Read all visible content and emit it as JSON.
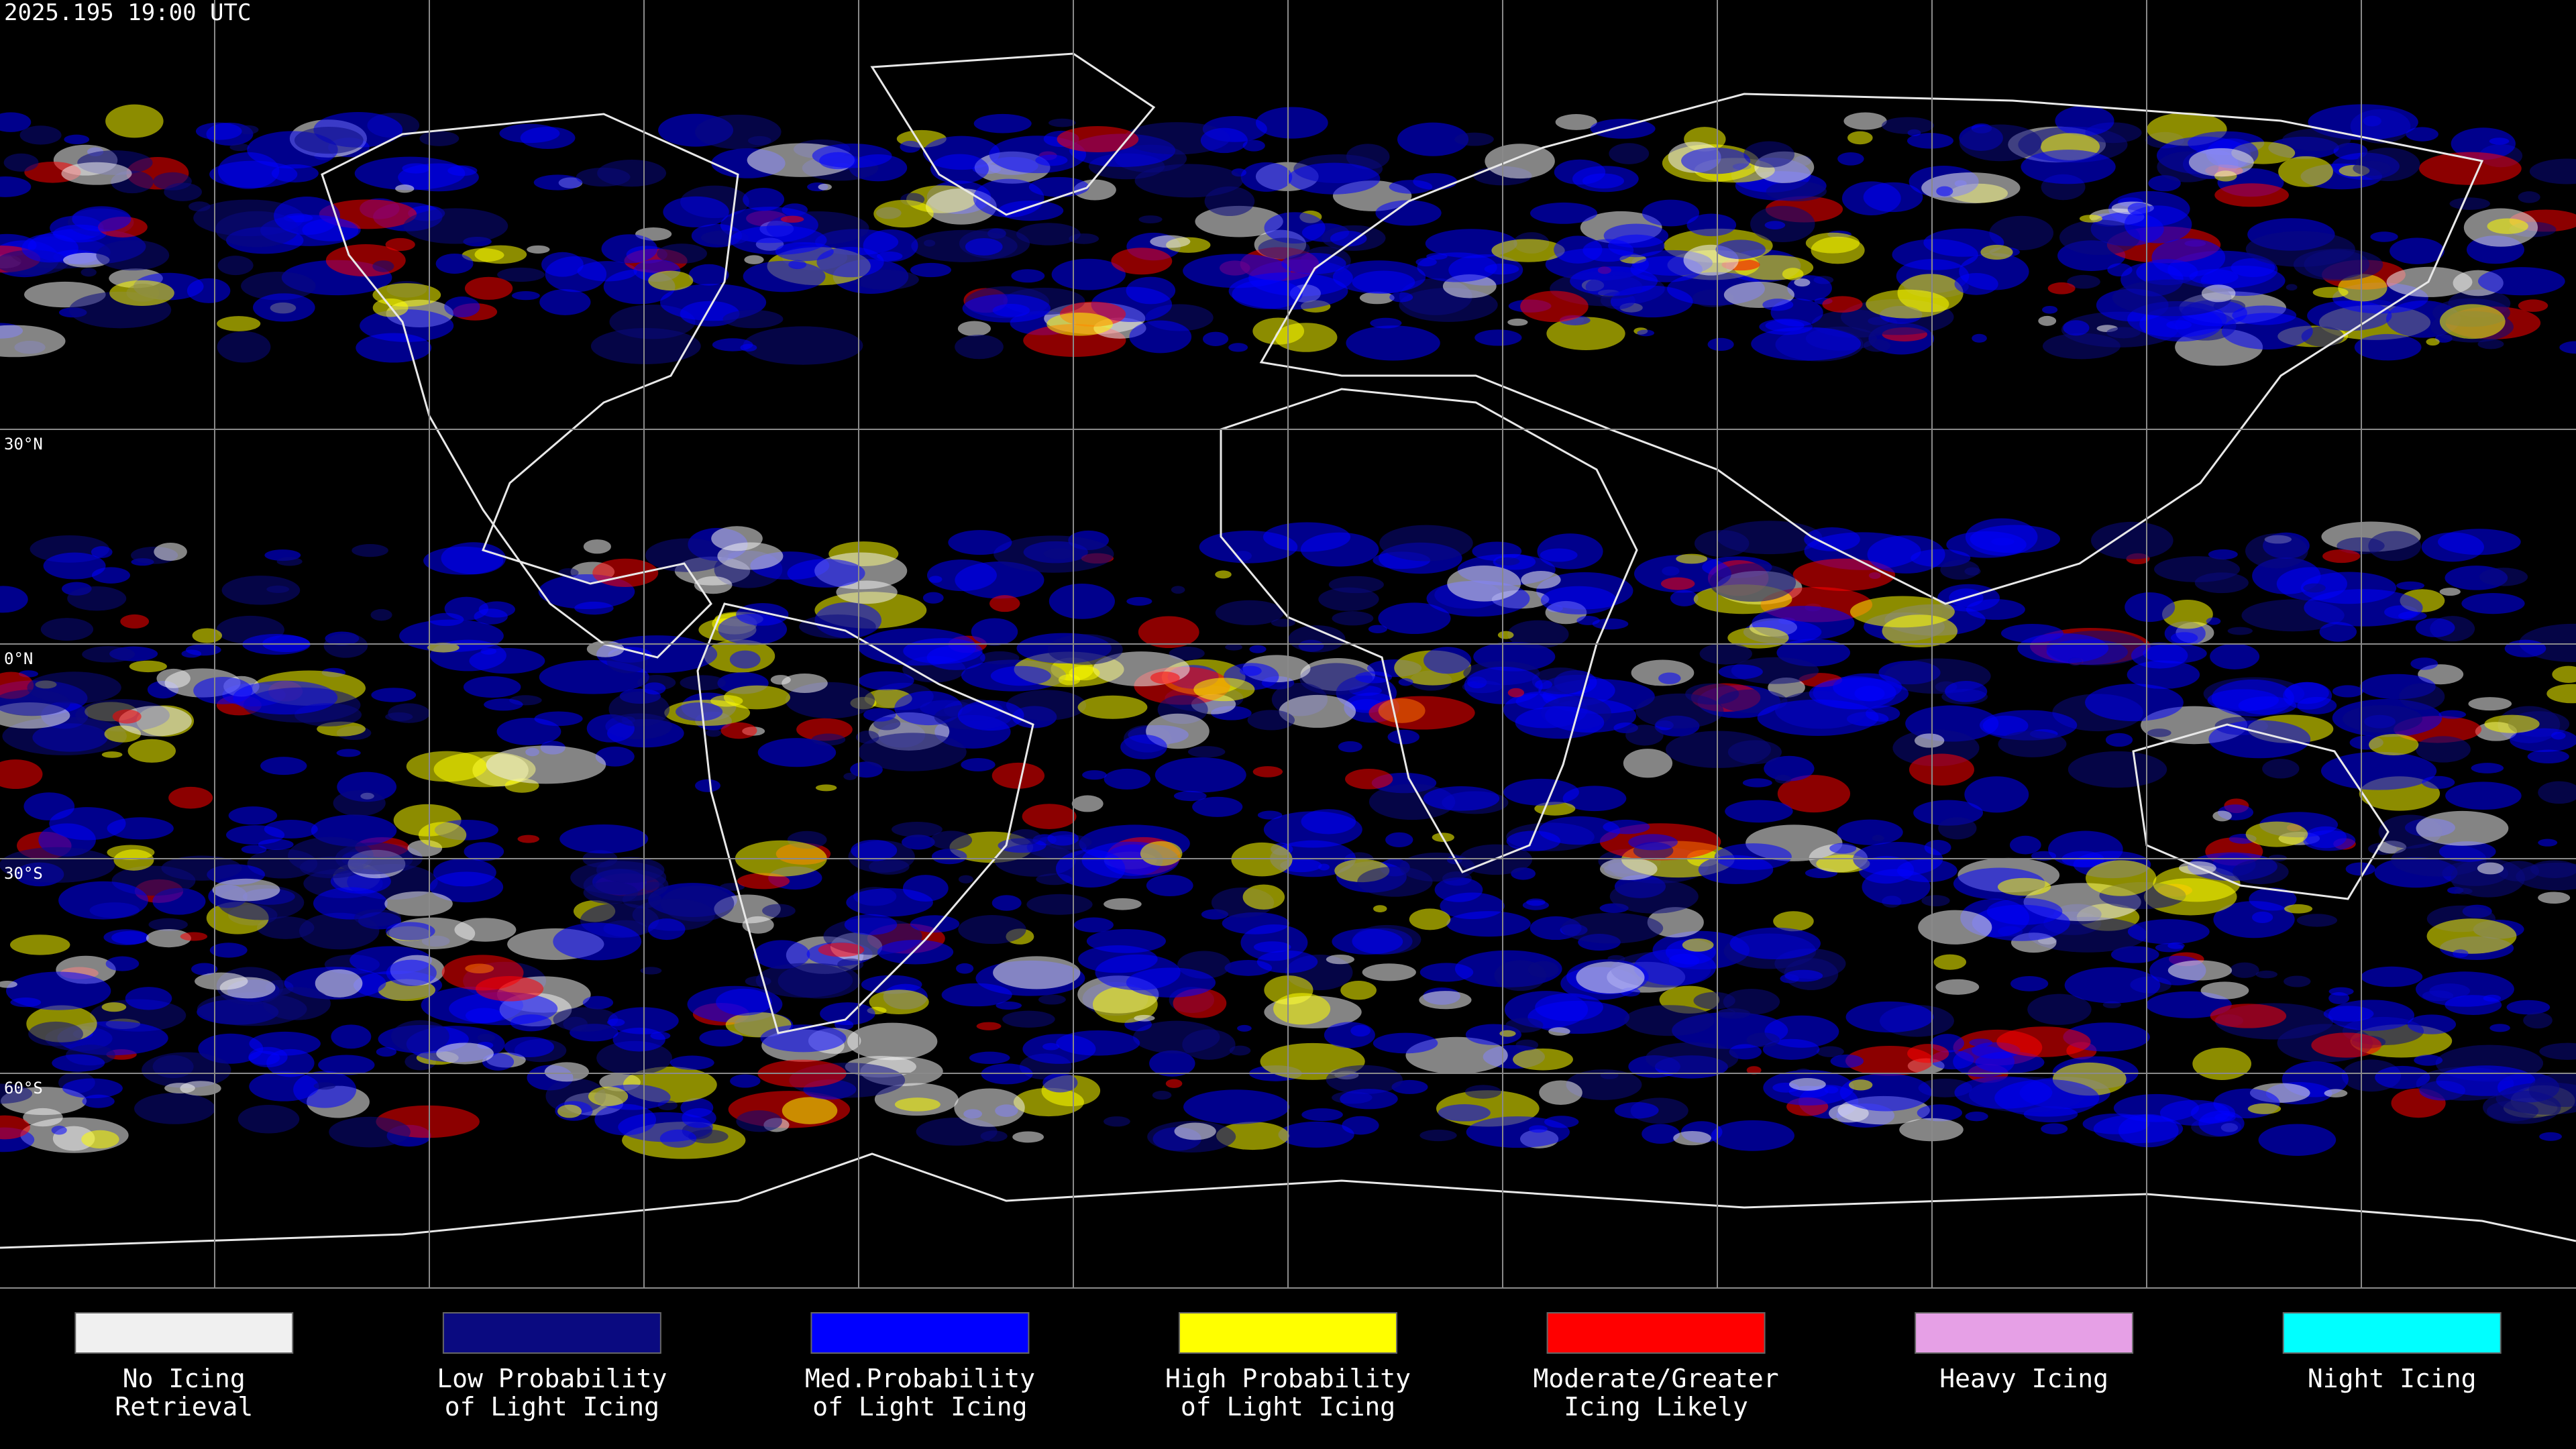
{
  "header": {
    "timestamp": "2025.195 19:00 UTC"
  },
  "latitude_labels": [
    "30°N",
    "0°N",
    "30°S",
    "60°S"
  ],
  "legend": [
    {
      "lines": [
        "No Icing",
        "Retrieval"
      ],
      "color": "#f0f0f0"
    },
    {
      "lines": [
        "Low Probability",
        "of Light Icing"
      ],
      "color": "#0a0a80"
    },
    {
      "lines": [
        "Med.Probability",
        "of Light Icing"
      ],
      "color": "#0000ff"
    },
    {
      "lines": [
        "High Probability",
        "of Light Icing"
      ],
      "color": "#ffff00"
    },
    {
      "lines": [
        "Moderate/Greater",
        "Icing Likely"
      ],
      "color": "#ff0000"
    },
    {
      "lines": [
        "Heavy Icing"
      ],
      "color": "#e6a0e6"
    },
    {
      "lines": [
        "Night Icing"
      ],
      "color": "#00ffff"
    }
  ]
}
